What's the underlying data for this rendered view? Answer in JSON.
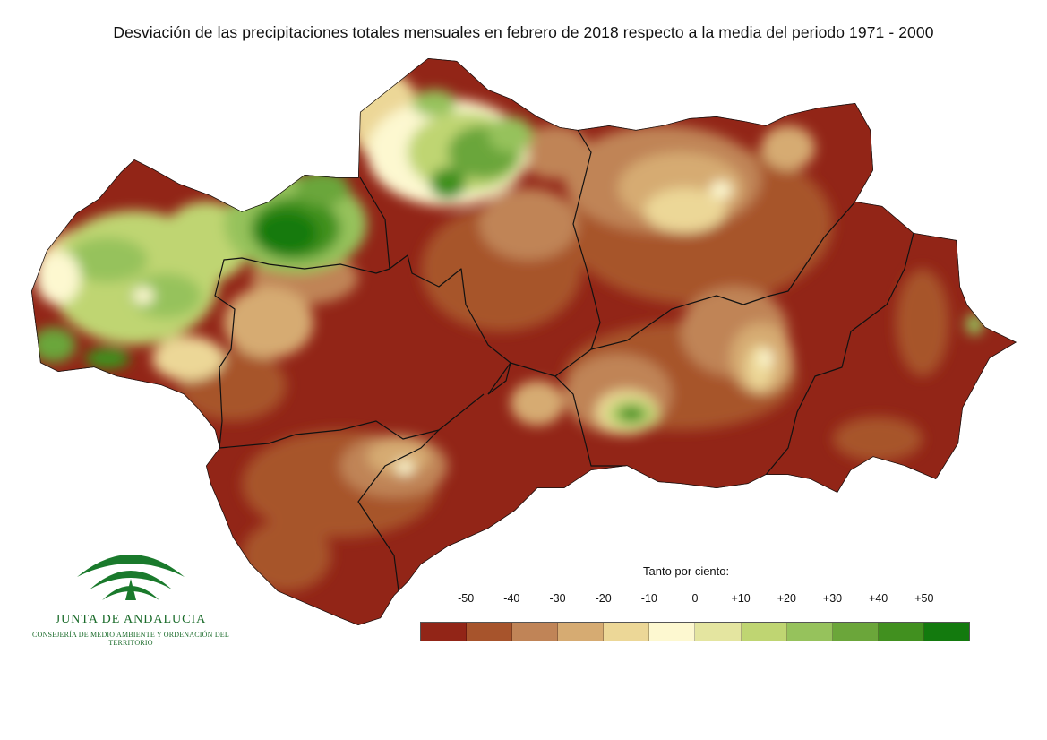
{
  "title": "Desviación de las precipitaciones totales mensuales en febrero de 2018 respecto a la media del periodo 1971 - 2000",
  "legend": {
    "title": "Tanto por ciento:",
    "ticks": [
      "-50",
      "-40",
      "-30",
      "-20",
      "-10",
      "0",
      "+10",
      "+20",
      "+30",
      "+40",
      "+50"
    ],
    "colors": [
      "#922517",
      "#a7542c",
      "#c08457",
      "#d6ab72",
      "#ecd797",
      "#fdf8d0",
      "#e4e5a0",
      "#bfd572",
      "#96c25c",
      "#6ba63a",
      "#41901f",
      "#137a0e"
    ]
  },
  "logo": {
    "name": "JUNTA DE ANDALUCIA",
    "subtitle": "CONSEJERÍA DE MEDIO AMBIENTE Y ORDENACIÓN DEL TERRITORIO"
  },
  "map": {
    "region_color": "#922517",
    "border_color": "#111111"
  }
}
